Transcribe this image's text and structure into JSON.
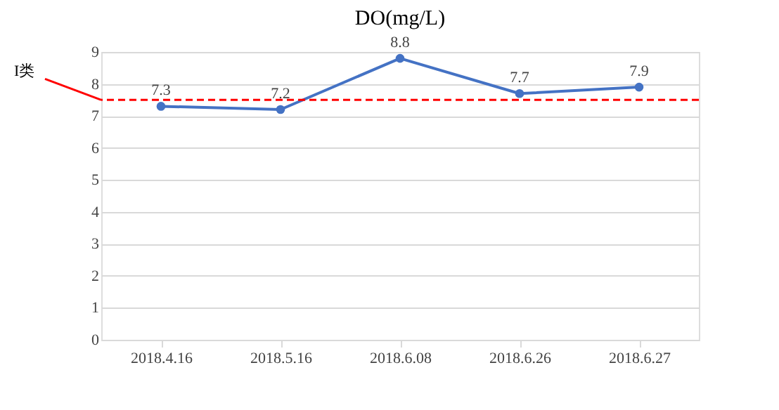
{
  "chart_data": {
    "type": "line",
    "title": "DO(mg/L)",
    "categories": [
      "2018.4.16",
      "2018.5.16",
      "2018.6.08",
      "2018.6.26",
      "2018.6.27"
    ],
    "series": [
      {
        "color": "#4472c4",
        "values": [
          7.3,
          7.2,
          8.8,
          7.7,
          7.9
        ]
      }
    ],
    "ylim": [
      0,
      9
    ],
    "yticks": [
      0,
      1,
      2,
      3,
      4,
      5,
      6,
      7,
      8,
      9
    ],
    "grid": "y",
    "marker": "circle",
    "line_style": "solid",
    "data_labels": true,
    "legend": false,
    "ref_lines": [
      {
        "axis": "y",
        "value": 7.5,
        "label": "I类",
        "color": "#ff0000",
        "line_style": "dashed"
      }
    ]
  }
}
